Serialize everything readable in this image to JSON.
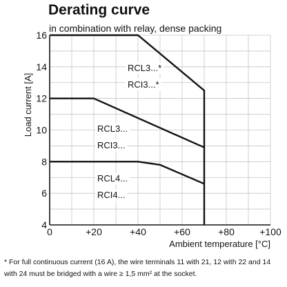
{
  "chart_data": {
    "type": "line",
    "title": "Derating curve",
    "subtitle": "in combination with relay, dense packing",
    "xlabel": "Ambient temperature [°C]",
    "ylabel": "Load current [A]",
    "xlim": [
      0,
      100
    ],
    "ylim": [
      4,
      16
    ],
    "x_ticks": [
      0,
      20,
      40,
      60,
      80,
      100
    ],
    "x_tick_labels": [
      "0",
      "+20",
      "+40",
      "+60",
      "+80",
      "+100"
    ],
    "y_ticks": [
      4,
      6,
      8,
      10,
      12,
      14,
      16
    ],
    "y_tick_labels": [
      "4",
      "6",
      "8",
      "10",
      "12",
      "14",
      "16"
    ],
    "grid": true,
    "series": [
      {
        "labels": [
          "RCL3...*",
          "RCI3...*"
        ],
        "x": [
          0,
          40,
          70,
          70
        ],
        "y": [
          16,
          16,
          12.5,
          4
        ]
      },
      {
        "labels": [
          "RCL3...",
          "RCI3..."
        ],
        "x": [
          0,
          20,
          70
        ],
        "y": [
          12,
          12,
          8.9
        ]
      },
      {
        "labels": [
          "RCL4...",
          "RCI4..."
        ],
        "x": [
          0,
          40,
          50,
          70
        ],
        "y": [
          8,
          8,
          7.8,
          6.6
        ]
      }
    ]
  },
  "footnote": "* For full continuous current (16 A), the wire terminals 11 with 21, 12 with 22 and 14 with 24 must be bridged with a wire ≥ 1,5 mm² at the socket."
}
